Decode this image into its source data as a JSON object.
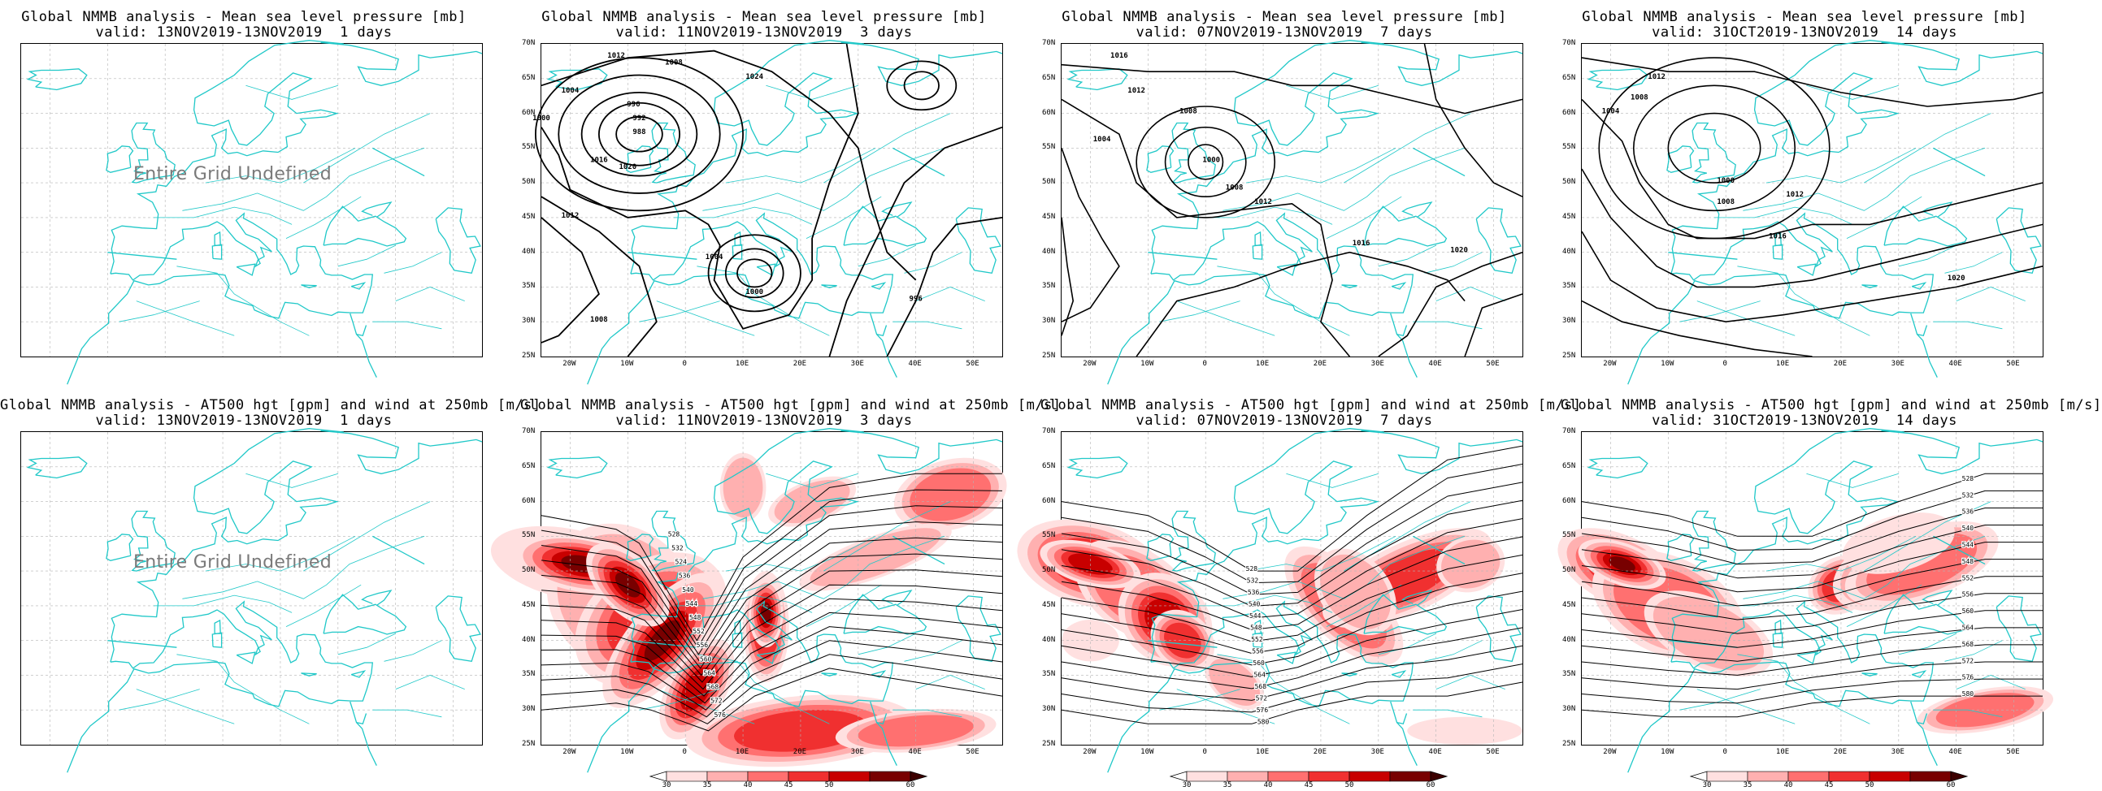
{
  "panels": [
    {
      "id": "p11",
      "title": "Global NMMB analysis - Mean sea level pressure [mb]",
      "valid": "valid: 13NOV2019-13NOV2019  1 days",
      "undefined_msg": "Entire Grid Undefined"
    },
    {
      "id": "p12",
      "title": "Global NMMB analysis - Mean sea level pressure [mb]",
      "valid": "valid: 11NOV2019-13NOV2019  3 days"
    },
    {
      "id": "p13",
      "title": "Global NMMB analysis - Mean sea level pressure [mb]",
      "valid": "valid: 07NOV2019-13NOV2019  7 days"
    },
    {
      "id": "p14",
      "title": "Global NMMB analysis - Mean sea level pressure [mb]",
      "valid": "valid: 31OCT2019-13NOV2019  14 days"
    },
    {
      "id": "p21",
      "title": "Global NMMB analysis - AT500 hgt [gpm] and wind at 250mb [m/s]",
      "valid": "valid: 13NOV2019-13NOV2019  1 days",
      "undefined_msg": "Entire Grid Undefined"
    },
    {
      "id": "p22",
      "title": "Global NMMB analysis - AT500 hgt [gpm] and wind at 250mb [m/s]",
      "valid": "valid: 11NOV2019-13NOV2019  3 days"
    },
    {
      "id": "p23",
      "title": "Global NMMB analysis - AT500 hgt [gpm] and wind at 250mb [m/s]",
      "valid": "valid: 07NOV2019-13NOV2019  7 days"
    },
    {
      "id": "p24",
      "title": "Global NMMB analysis - AT500 hgt [gpm] and wind at 250mb [m/s]",
      "valid": "valid: 31OCT2019-13NOV2019  14 days"
    }
  ],
  "axes": {
    "lat_labels": [
      "70N",
      "65N",
      "60N",
      "55N",
      "50N",
      "45N",
      "40N",
      "35N",
      "30N",
      "25N"
    ],
    "lon_labels": [
      "20W",
      "10W",
      "0",
      "10E",
      "20E",
      "30E",
      "40E",
      "50E"
    ]
  },
  "colorbar": {
    "levels": [
      "30",
      "35",
      "40",
      "45",
      "50",
      "60"
    ],
    "colors": [
      "#ffe0e0",
      "#ffb0b0",
      "#ff7070",
      "#f03030",
      "#c80000",
      "#780000"
    ]
  },
  "mslp_labels": {
    "p12": [
      "1012",
      "1008",
      "1004",
      "1000",
      "996",
      "992",
      "988",
      "1016",
      "1020",
      "1024",
      "1012",
      "1008",
      "1004",
      "1000",
      "996"
    ],
    "p13": [
      "1016",
      "1012",
      "1008",
      "1004",
      "1000",
      "1008",
      "1012",
      "1016",
      "1020"
    ],
    "p14": [
      "1012",
      "1008",
      "1004",
      "1000",
      "1008",
      "1012",
      "1016",
      "1020"
    ]
  },
  "z500_labels": {
    "p22": [
      "528",
      "532",
      "524",
      "536",
      "540",
      "544",
      "548",
      "552",
      "556",
      "560",
      "564",
      "568",
      "572",
      "576",
      "580"
    ],
    "p23": [
      "528",
      "532",
      "536",
      "540",
      "544",
      "548",
      "552",
      "556",
      "560",
      "564",
      "568",
      "572",
      "576",
      "580"
    ],
    "p24": [
      "528",
      "532",
      "536",
      "540",
      "544",
      "548",
      "552",
      "556",
      "560",
      "564",
      "568",
      "572",
      "576",
      "580"
    ]
  },
  "map_colors": {
    "coast": "#20c8c8",
    "contour": "#000000",
    "grid": "#b4b4b4"
  }
}
